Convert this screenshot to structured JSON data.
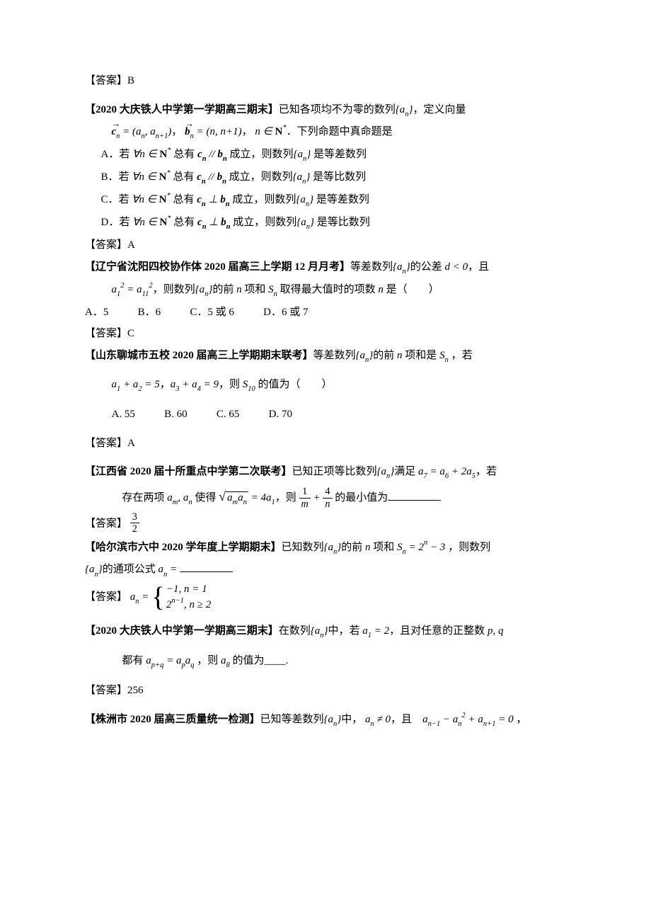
{
  "answers": {
    "ans0": "【答案】B",
    "ans1": "【答案】A",
    "ans2": "【答案】C",
    "ans3": "【答案】A",
    "ans4_label": "【答案】",
    "ans5_prefix": "【答案】",
    "ans6": "【答案】256"
  },
  "q1": {
    "stem_prefix": "【2020 大庆铁人中学第一学期高三期末】",
    "stem_tail": "已知各项均不为零的数列",
    "stem_tail2": "，定义向量",
    "defs_suffix": "．下列命题中真命题是",
    "optA_prefix": "A．若",
    "optA_mid": "总有",
    "optA_tail": "成立，则数列",
    "optA_end": "是等差数列",
    "optB_prefix": "B．若",
    "optB_mid": "总有",
    "optB_tail": "成立，则数列",
    "optB_end": "是等比数列",
    "optC_prefix": "C．若",
    "optC_mid": "总有",
    "optC_tail": "成立，则数列",
    "optC_end": "是等差数列",
    "optD_prefix": "D．若",
    "optD_mid": "总有",
    "optD_tail": "成立，则数列",
    "optD_end": "是等比数列"
  },
  "q2": {
    "stem_prefix": "【辽宁省沈阳四校协作体 2020 届高三上学期 12 月月考】",
    "stem_tail": "等差数列",
    "stem_tail2": "的公差",
    "stem_tail3": "，且",
    "line2_tail": "，则数列",
    "line2_mid": "的前",
    "line2_mid2": "项和",
    "line2_tail2": "取得最大值时的项数",
    "line2_tail3": "是（　　）",
    "optA": "A．5",
    "optB": "B．6",
    "optC": "C．5 或 6",
    "optD": "D．6 或 7"
  },
  "q3": {
    "stem_prefix": "【山东聊城市五校 2020 届高三上学期期末联考】",
    "stem_tail": "等差数列",
    "stem_tail2": "的前",
    "stem_tail3": "项和是",
    "stem_tail4": "，若",
    "line2_mid": "，",
    "line2_tail": "，则",
    "line2_tail2": "的值为（　　）",
    "optA": "A. 55",
    "optB": "B. 60",
    "optC": "C. 65",
    "optD": "D. 70"
  },
  "q4": {
    "stem_prefix": "【江西省 2020 届十所重点中学第二次联考】",
    "stem_tail": "已知正项等比数列",
    "stem_tail2": "满足",
    "stem_tail3": "，若",
    "line2_prefix": "存在两项",
    "line2_mid": "使得",
    "line2_tail": "，则",
    "line2_tail2": "的最小值为"
  },
  "q5": {
    "stem_prefix": "【哈尔滨市六中 2020 学年度上学期期末】",
    "stem_tail": "已知数列",
    "stem_tail2": "的前",
    "stem_tail3": "项和",
    "stem_tail4": "，则数列",
    "line2_tail": "的通项公式"
  },
  "q6": {
    "stem_prefix": "【2020 大庆铁人中学第一学期高三期末】",
    "stem_tail": "在数列",
    "stem_tail2": "中，若",
    "stem_tail3": "，且对任意的正整数",
    "line2_prefix": "都有",
    "line2_mid": "，则",
    "line2_tail": "的值为____."
  },
  "q7": {
    "stem_prefix": "【株洲市 2020 届高三质量统一检测】",
    "stem_tail": "已知等差数列",
    "stem_tail2": "中，",
    "stem_tail3": "，且"
  },
  "math": {
    "set_an": "{aₙ}",
    "c_vec": "c",
    "b_vec": "b",
    "forall": "∀n ∈ N*",
    "n_in_N": "n ∈ N*",
    "cn_def": " = (aₙ, aₙ₊₁)",
    "bn_def": " = (n, n+1)",
    "parallel": " // ",
    "perp": " ⊥ ",
    "d_lt_0": "d < 0",
    "a1sq_eq_a11sq": "a₁² = a₁₁²",
    "n": "n",
    "Sn": "Sₙ",
    "a1a2": "a₁ + a₂ = 5",
    "a3a4": "a₃ + a₄ = 9",
    "S10": "S₁₀",
    "a7eq": "a₇ = a₆ + 2a₅",
    "aman": "aₘ, aₙ",
    "sqrt_aman": "√(aₘaₙ) = 4a₁",
    "Sn_eq": "Sₙ = 2ⁿ − 3",
    "an_eq": "aₙ = ",
    "a1_eq_2": "a₁ = 2",
    "pq": "p, q",
    "apq": "aₚ₊q = aₚaq",
    "a8": "a₈",
    "an_ne_0": "aₙ ≠ 0",
    "recur": "aₙ₋₁ − aₙ² + aₙ₊₁ = 0",
    "frac32_num": "3",
    "frac32_den": "2",
    "frac_1m_num": "1",
    "frac_1m_den": "m",
    "frac_4n_num": "4",
    "frac_4n_den": "n",
    "piecewise_top": "−1, n = 1",
    "piecewise_bot": "2ⁿ⁻¹, n ≥ 2"
  }
}
